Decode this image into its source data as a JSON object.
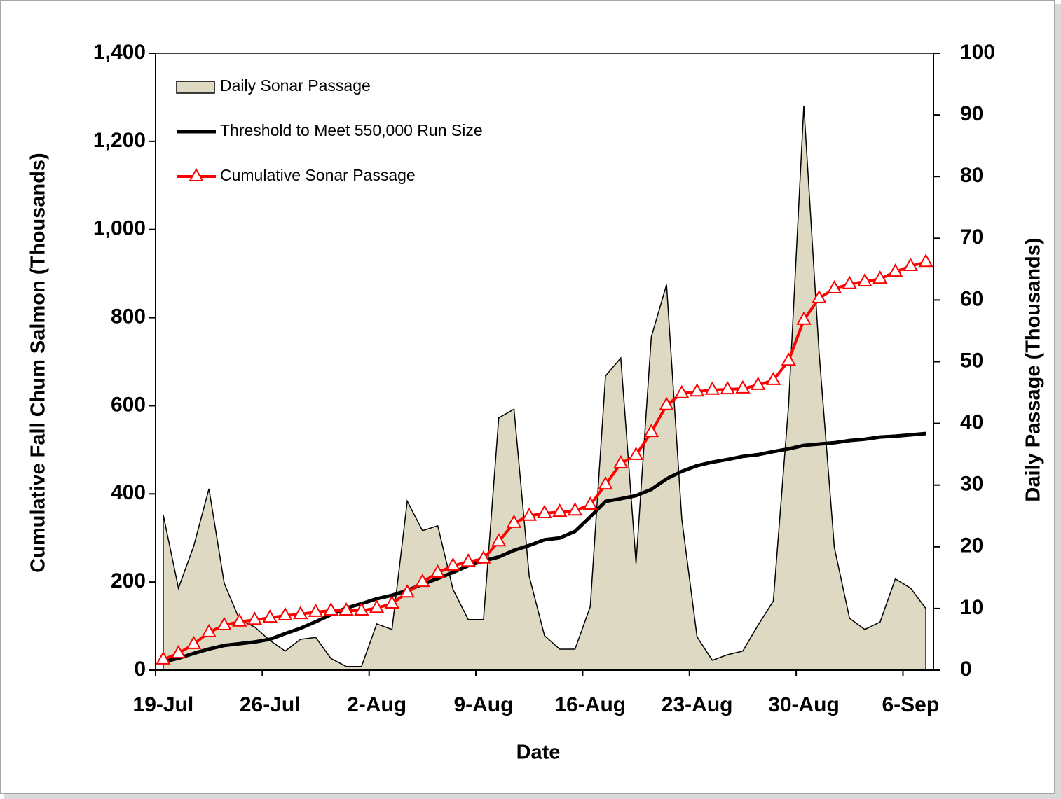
{
  "chart_data": {
    "type": "line",
    "categories": [
      "19-Jul",
      null,
      null,
      null,
      null,
      null,
      null,
      "26-Jul",
      null,
      null,
      null,
      null,
      null,
      null,
      "2-Aug",
      null,
      null,
      null,
      null,
      null,
      null,
      "9-Aug",
      null,
      null,
      null,
      null,
      null,
      null,
      "16-Aug",
      null,
      null,
      null,
      null,
      null,
      null,
      "23-Aug",
      null,
      null,
      null,
      null,
      null,
      null,
      "30-Aug",
      null,
      null,
      null,
      null,
      null,
      null,
      "6-Sep",
      null
    ],
    "xlabel": "Date",
    "ylabel": "Cumulative Fall Chum Salmon (Thousands)",
    "y2label": "Daily Passage (Thousands)",
    "ylim": [
      0,
      1400
    ],
    "yticks": [
      0,
      200,
      400,
      600,
      800,
      {
        "value": 1000,
        "label": "1,000"
      },
      {
        "value": 1200,
        "label": "1,200"
      },
      {
        "value": 1400,
        "label": "1,400"
      }
    ],
    "y2lim": [
      0,
      100
    ],
    "y2ticks": [
      0,
      10,
      20,
      30,
      40,
      50,
      60,
      70,
      80,
      90,
      100
    ],
    "grid": false,
    "legend": "upper left",
    "series": [
      {
        "name": "Daily Sonar Passage",
        "type": "area",
        "axis": "y2",
        "color": "#ddd9c3",
        "values": [
          25.2,
          13.3,
          20.1,
          29.4,
          14.1,
          8.2,
          7.0,
          4.8,
          3.1,
          5.0,
          5.3,
          1.9,
          0.6,
          0.6,
          7.5,
          6.6,
          27.4,
          22.6,
          23.4,
          13.1,
          8.2,
          8.2,
          40.9,
          42.3,
          15.2,
          5.6,
          3.4,
          3.4,
          10.3,
          47.7,
          50.6,
          17.3,
          54.0,
          62.5,
          24.5,
          5.4,
          1.6,
          2.5,
          3.1,
          7.3,
          11.2,
          42.9,
          91.5,
          51.5,
          19.9,
          8.4,
          6.6,
          7.8,
          14.8,
          13.3,
          10.0
        ]
      },
      {
        "name": "Threshold to Meet 550,000 Run Size",
        "type": "line",
        "axis": "y",
        "color": "#000000",
        "values": [
          19,
          27,
          38,
          48,
          56,
          60,
          64,
          70,
          83,
          95,
          110,
          126,
          141,
          151,
          162,
          170,
          181,
          195,
          208,
          222,
          237,
          248,
          257,
          272,
          283,
          296,
          300,
          315,
          348,
          383,
          389,
          396,
          410,
          434,
          451,
          464,
          472,
          478,
          485,
          489,
          496,
          502,
          510,
          513,
          516,
          521,
          524,
          529,
          531,
          534,
          537
        ]
      },
      {
        "name": "Cumulative Sonar Passage",
        "type": "line",
        "marker": "triangle",
        "axis": "y",
        "color": "#ff0000",
        "values": [
          24,
          38,
          59,
          86,
          102,
          110,
          114,
          119,
          124,
          127,
          132,
          135,
          135,
          135,
          141,
          151,
          176,
          200,
          221,
          237,
          246,
          253,
          292,
          334,
          350,
          356,
          359,
          362,
          375,
          421,
          469,
          488,
          540,
          601,
          628,
          632,
          636,
          637,
          639,
          647,
          658,
          702,
          795,
          844,
          866,
          876,
          882,
          888,
          904,
          917,
          926
        ]
      }
    ]
  }
}
